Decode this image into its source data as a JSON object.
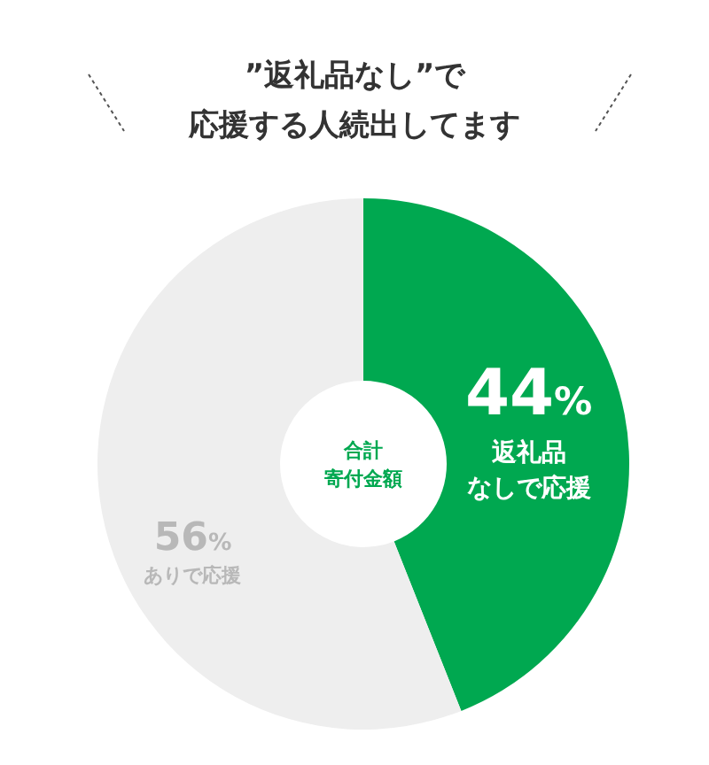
{
  "chart_data": {
    "type": "donut",
    "title": "”返礼品なし”で応援する人続出してます",
    "categories": [
      "返礼品なしで応援",
      "ありで応援"
    ],
    "values": [
      44,
      56
    ],
    "colors": [
      "#00a850",
      "#eeeeee"
    ],
    "value_labels": [
      "44%",
      "56%"
    ],
    "annotations": [
      "合計寄付金額"
    ]
  }
}
